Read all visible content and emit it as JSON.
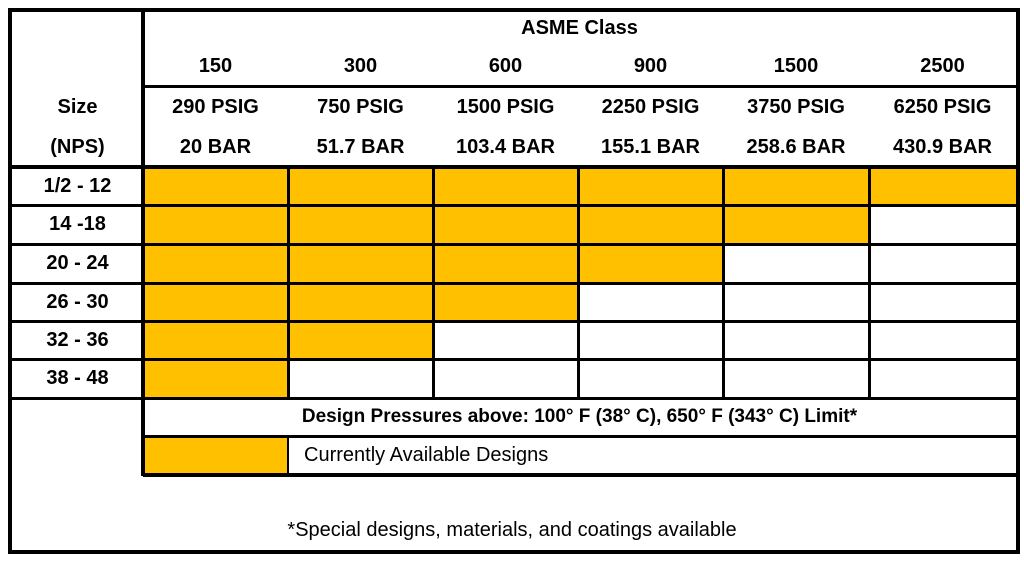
{
  "table": {
    "group_header": "ASME Class",
    "size_header": [
      "Size",
      "(NPS)"
    ],
    "classes": [
      {
        "class": "150",
        "psig": "290 PSIG",
        "bar": "20 BAR"
      },
      {
        "class": "300",
        "psig": "750 PSIG",
        "bar": "51.7 BAR"
      },
      {
        "class": "600",
        "psig": "1500 PSIG",
        "bar": "103.4 BAR"
      },
      {
        "class": "900",
        "psig": "2250 PSIG",
        "bar": "155.1 BAR"
      },
      {
        "class": "1500",
        "psig": "3750 PSIG",
        "bar": "258.6 BAR"
      },
      {
        "class": "2500",
        "psig": "6250 PSIG",
        "bar": "430.9 BAR"
      }
    ],
    "rows": [
      {
        "size": "1/2 - 12",
        "available": [
          true,
          true,
          true,
          true,
          true,
          true
        ]
      },
      {
        "size": "14 -18",
        "available": [
          true,
          true,
          true,
          true,
          true,
          false
        ]
      },
      {
        "size": "20 - 24",
        "available": [
          true,
          true,
          true,
          true,
          false,
          false
        ]
      },
      {
        "size": "26 - 30",
        "available": [
          true,
          true,
          true,
          false,
          false,
          false
        ]
      },
      {
        "size": "32 - 36",
        "available": [
          true,
          true,
          false,
          false,
          false,
          false
        ]
      },
      {
        "size": "38 - 48",
        "available": [
          true,
          false,
          false,
          false,
          false,
          false
        ]
      }
    ],
    "design_note": "Design Pressures above: 100° F (38° C), 650° F (343° C) Limit*",
    "legend_label": "Currently Available Designs",
    "footnote": "*Special designs,  materials, and coatings available"
  },
  "colors": {
    "available": "#ffc000",
    "unavailable": "#ffffff",
    "grid": "#000000"
  }
}
